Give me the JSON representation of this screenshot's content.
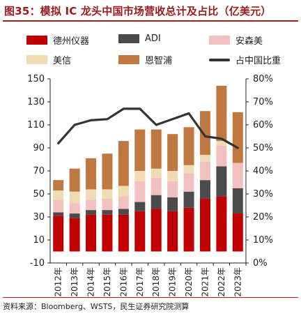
{
  "chart_data": {
    "type": "bar",
    "stacked": true,
    "title": "图35：模拟 IC 龙头中国市场营收总计及占比（亿美元）",
    "categories": [
      "2012年",
      "2013年",
      "2014年",
      "2015年",
      "2016年",
      "2017年",
      "2018年",
      "2019年",
      "2020年",
      "2021年",
      "2022年",
      "2023年"
    ],
    "series": [
      {
        "name": "德州仪器",
        "color": "#c00000",
        "values": [
          31,
          29,
          32,
          32,
          32,
          35,
          37,
          35,
          38,
          46,
          48,
          33
        ]
      },
      {
        "name": "ADI",
        "color": "#4b4b4b",
        "values": [
          3,
          4,
          4,
          4,
          5,
          8,
          12,
          12,
          14,
          16,
          26,
          22
        ]
      },
      {
        "name": "安森美",
        "color": "#f3c0c0",
        "values": [
          11,
          9,
          9,
          10,
          11,
          18,
          15,
          14,
          16,
          16,
          18,
          22
        ]
      },
      {
        "name": "美信",
        "color": "#efdcb5",
        "values": [
          8,
          10,
          9,
          8,
          9,
          9,
          8,
          9,
          7,
          6,
          4,
          0
        ]
      },
      {
        "name": "恩智浦",
        "color": "#be7840",
        "values": [
          9,
          20,
          27,
          31,
          39,
          36,
          34,
          32,
          33,
          38,
          48,
          44
        ]
      }
    ],
    "line_series": {
      "name": "占中国比重",
      "color": "#333333",
      "axis": "right",
      "values": [
        52,
        60,
        62,
        62.5,
        67,
        67,
        60,
        62.5,
        65,
        55,
        54,
        50
      ]
    },
    "ylim": [
      -10,
      150
    ],
    "yticks": [
      -10,
      10,
      30,
      50,
      70,
      90,
      110,
      130,
      150
    ],
    "y2lim": [
      0,
      80
    ],
    "y2ticks": [
      "0%",
      "10%",
      "20%",
      "30%",
      "40%",
      "50%",
      "60%",
      "70%",
      "80%"
    ],
    "legend_position": "top",
    "grid": false
  },
  "source": "资料来源：Bloomberg、WSTS，民生证券研究院测算"
}
